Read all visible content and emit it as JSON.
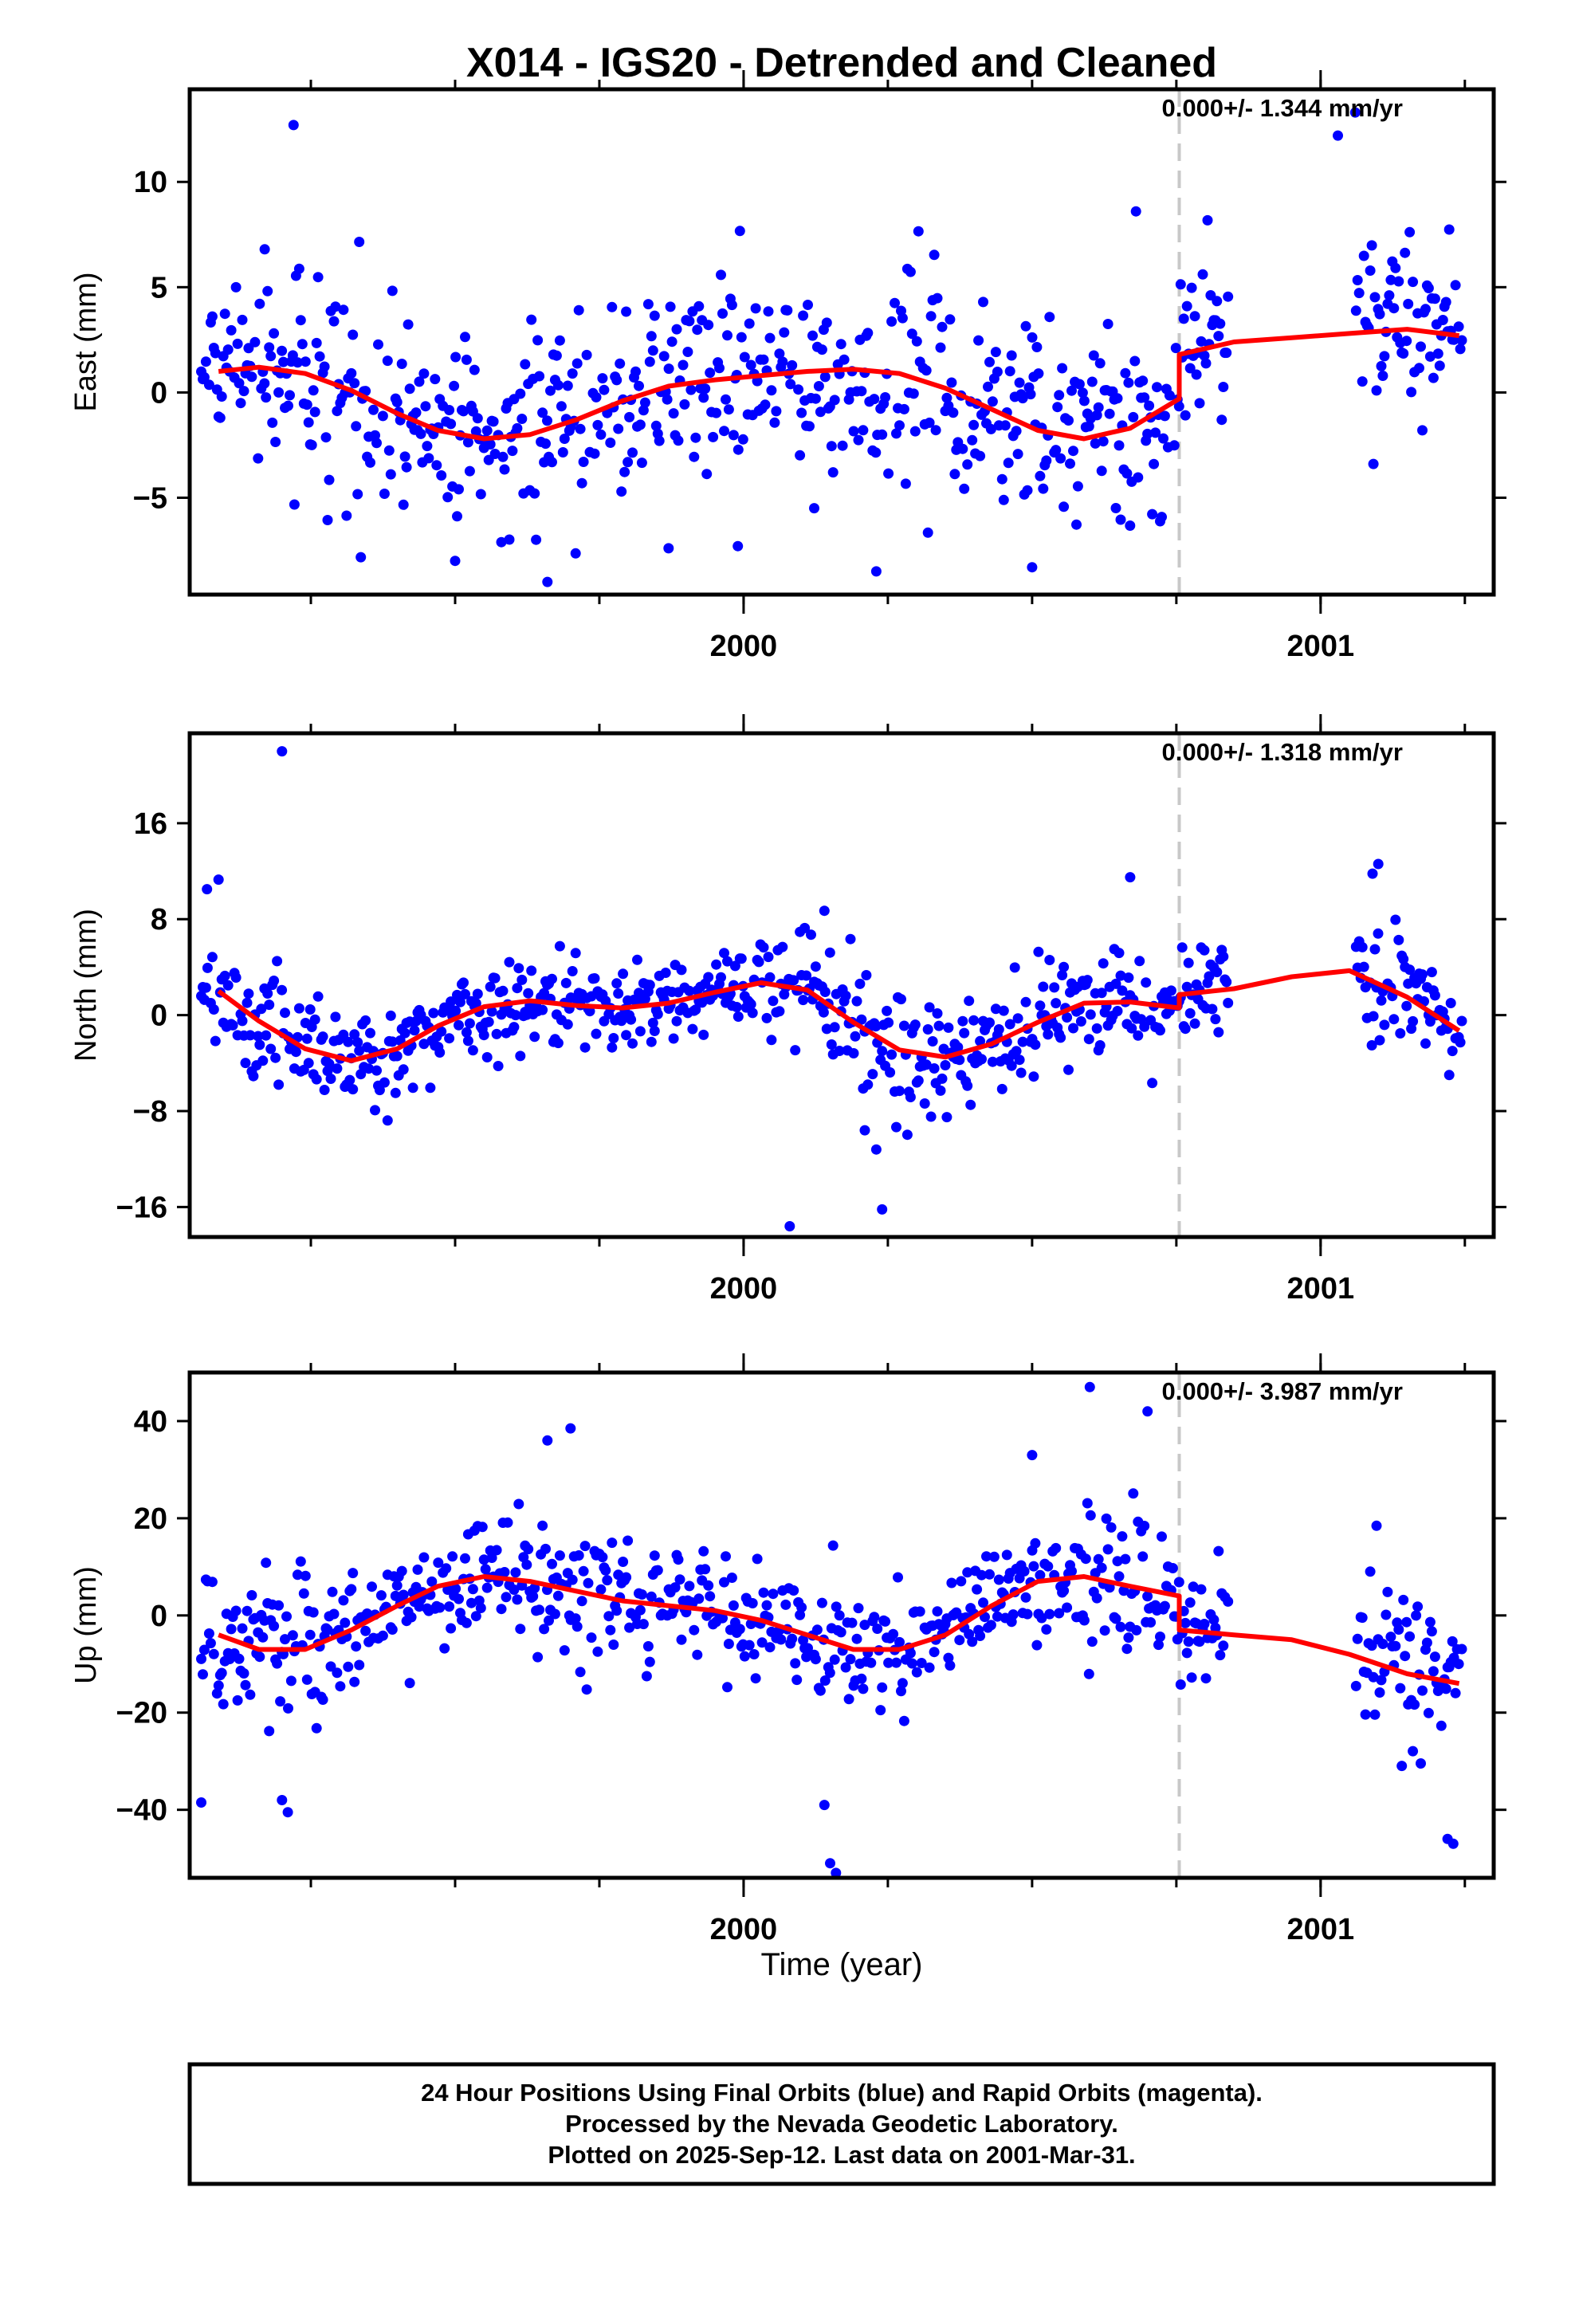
{
  "title": "X014 - IGS20 - Detrended and Cleaned",
  "xlabel": "Time (year)",
  "colors": {
    "final": "#0000ff",
    "rapid": "#ff00ff",
    "model": "#ff0000",
    "break": "#c8c8c8"
  },
  "footer": {
    "line1": "24 Hour Positions Using Final Orbits (blue) and Rapid Orbits (magenta).",
    "line2": "Processed by the Nevada Geodetic Laboratory.",
    "line3": "Plotted on 2025-Sep-12. Last data on 2001-Mar-31."
  },
  "chart_data": [
    {
      "type": "scatter",
      "name": "east",
      "ylabel": "East (mm)",
      "rate_label": "0.000+/- 1.344 mm/yr",
      "xlim": [
        1999.04,
        2001.3
      ],
      "ylim": [
        -9.6,
        14.4
      ],
      "xticks": [
        2000,
        2001
      ],
      "xtick_labels": [
        "2000",
        "2001"
      ],
      "yticks": [
        -5,
        0,
        5,
        10
      ],
      "ytick_labels": [
        "−5",
        "0",
        "5",
        "10"
      ],
      "break_epoch": 2000.755,
      "gaps": [
        [
          2000.84,
          2001.06
        ]
      ],
      "model": {
        "x": [
          1999.09,
          1999.16,
          1999.24,
          1999.32,
          1999.4,
          1999.47,
          1999.55,
          1999.63,
          1999.71,
          1999.79,
          1999.87,
          1999.95,
          2000.03,
          2000.11,
          2000.19,
          2000.27,
          2000.35,
          2000.43,
          2000.51,
          2000.59,
          2000.67,
          2000.755,
          2000.755,
          2000.85,
          2000.95,
          2001.05,
          2001.15,
          2001.24
        ],
        "y": [
          1.0,
          1.2,
          0.9,
          0.1,
          -1.0,
          -1.8,
          -2.2,
          -2.0,
          -1.3,
          -0.4,
          0.3,
          0.6,
          0.8,
          1.0,
          1.1,
          0.9,
          0.2,
          -0.8,
          -1.8,
          -2.2,
          -1.7,
          -0.3,
          1.8,
          2.4,
          2.6,
          2.8,
          3.0,
          2.7
        ]
      },
      "residual_profile": {
        "x": [
          1999.06,
          1999.2,
          1999.32,
          1999.4,
          1999.5,
          1999.6,
          1999.7,
          1999.78,
          1999.9,
          2000.05,
          2000.17,
          2000.25,
          2000.35,
          2000.42,
          2000.5,
          2000.59,
          2000.68,
          2000.76,
          2000.84,
          2001.06,
          2001.18,
          2001.25,
          2001.3
        ],
        "scatter": [
          1.9,
          2.2,
          2.2,
          2.2,
          2.1,
          2.4,
          2.5,
          2.3,
          2.4,
          2.3,
          2.4,
          2.5,
          2.6,
          2.4,
          2.5,
          2.5,
          2.4,
          2.3,
          2.2,
          3.2,
          2.6,
          2.2,
          2.2
        ]
      },
      "outliers": [
        [
          1999.22,
          12.7
        ],
        [
          1999.66,
          -9.0
        ],
        [
          2001.06,
          13.3
        ],
        [
          2001.03,
          12.2
        ],
        [
          2000.68,
          8.6
        ],
        [
          2000.23,
          -8.5
        ],
        [
          2000.5,
          -8.3
        ],
        [
          1999.5,
          -8.0
        ],
        [
          1999.87,
          -7.4
        ],
        [
          1999.99,
          -7.3
        ],
        [
          1999.17,
          6.8
        ]
      ]
    },
    {
      "type": "scatter",
      "name": "north",
      "ylabel": "North (mm)",
      "rate_label": "0.000+/- 1.318 mm/yr",
      "xlim": [
        1999.04,
        2001.3
      ],
      "ylim": [
        -18.5,
        23.5
      ],
      "xticks": [
        2000,
        2001
      ],
      "xtick_labels": [
        "2000",
        "2001"
      ],
      "yticks": [
        -16,
        -8,
        0,
        8,
        16
      ],
      "ytick_labels": [
        "−16",
        "−8",
        "0",
        "8",
        "16"
      ],
      "break_epoch": 2000.755,
      "gaps": [
        [
          2000.84,
          2001.06
        ]
      ],
      "model": {
        "x": [
          1999.09,
          1999.16,
          1999.24,
          1999.32,
          1999.4,
          1999.47,
          1999.55,
          1999.63,
          1999.71,
          1999.79,
          1999.87,
          1999.95,
          2000.03,
          2000.11,
          2000.19,
          2000.27,
          2000.35,
          2000.43,
          2000.51,
          2000.59,
          2000.67,
          2000.755,
          2000.755,
          2000.85,
          2000.95,
          2001.05,
          2001.15,
          2001.24
        ],
        "y": [
          2.0,
          -0.5,
          -2.8,
          -3.8,
          -2.8,
          -0.9,
          0.7,
          1.2,
          0.8,
          0.6,
          1.0,
          1.9,
          2.7,
          2.1,
          -0.6,
          -2.9,
          -3.5,
          -2.4,
          -0.6,
          1.0,
          1.1,
          0.6,
          1.7,
          2.2,
          3.2,
          3.7,
          1.5,
          -1.3
        ]
      },
      "residual_profile": {
        "x": [
          1999.06,
          1999.2,
          1999.32,
          1999.45,
          1999.6,
          1999.75,
          1999.9,
          2000.05,
          2000.15,
          2000.25,
          2000.35,
          2000.45,
          2000.55,
          2000.65,
          2000.76,
          2000.84,
          2001.06,
          2001.18,
          2001.3
        ],
        "scatter": [
          2.6,
          2.4,
          2.1,
          2.1,
          2.0,
          1.9,
          2.0,
          2.1,
          2.7,
          2.8,
          2.2,
          2.2,
          2.0,
          2.2,
          1.9,
          1.9,
          2.8,
          2.2,
          2.1
        ]
      },
      "outliers": [
        [
          1999.2,
          22.0
        ],
        [
          2000.08,
          -17.6
        ],
        [
          2000.24,
          -16.2
        ],
        [
          2000.67,
          11.5
        ],
        [
          2001.1,
          12.6
        ],
        [
          2001.09,
          11.8
        ],
        [
          1999.07,
          10.5
        ],
        [
          1999.09,
          11.3
        ],
        [
          2000.23,
          -11.2
        ],
        [
          2000.14,
          8.7
        ],
        [
          2000.21,
          -9.6
        ]
      ]
    },
    {
      "type": "scatter",
      "name": "up",
      "ylabel": "Up (mm)",
      "rate_label": "0.000+/- 3.987 mm/yr",
      "xlim": [
        1999.04,
        2001.3
      ],
      "ylim": [
        -54,
        50
      ],
      "xticks": [
        2000,
        2001
      ],
      "xtick_labels": [
        "2000",
        "2001"
      ],
      "yticks": [
        -40,
        -20,
        0,
        20,
        40
      ],
      "ytick_labels": [
        "−40",
        "−20",
        "0",
        "20",
        "40"
      ],
      "break_epoch": 2000.755,
      "gaps": [
        [
          2000.84,
          2001.06
        ]
      ],
      "model": {
        "x": [
          1999.09,
          1999.16,
          1999.24,
          1999.32,
          1999.4,
          1999.47,
          1999.55,
          1999.63,
          1999.71,
          1999.79,
          1999.87,
          1999.95,
          2000.03,
          2000.11,
          2000.19,
          2000.27,
          2000.35,
          2000.43,
          2000.51,
          2000.59,
          2000.67,
          2000.755,
          2000.755,
          2000.85,
          2000.95,
          2001.05,
          2001.15,
          2001.24
        ],
        "y": [
          -4,
          -7,
          -7,
          -3,
          2,
          6,
          8,
          7,
          5,
          3,
          2,
          1,
          -1,
          -4,
          -7,
          -7,
          -4,
          2,
          7,
          8,
          6,
          4,
          -3,
          -4,
          -5,
          -8,
          -12,
          -14
        ]
      },
      "residual_profile": {
        "x": [
          1999.06,
          1999.15,
          1999.25,
          1999.35,
          1999.5,
          1999.65,
          1999.8,
          1999.95,
          2000.05,
          2000.12,
          2000.2,
          2000.3,
          2000.42,
          2000.55,
          2000.65,
          2000.76,
          2000.84,
          2001.06,
          2001.18,
          2001.3
        ],
        "scatter": [
          8,
          9,
          8,
          6,
          6,
          7,
          6,
          6,
          5,
          8,
          8,
          6,
          6,
          7,
          7,
          6,
          5,
          9,
          8,
          8
        ]
      },
      "outliers": [
        [
          2000.6,
          47.0
        ],
        [
          2000.7,
          42.0
        ],
        [
          1999.66,
          36.0
        ],
        [
          1999.7,
          38.5
        ],
        [
          2000.15,
          -51.0
        ],
        [
          2000.16,
          -53.0
        ],
        [
          1999.21,
          -40.5
        ],
        [
          1999.2,
          -38.0
        ],
        [
          1999.06,
          -38.5
        ],
        [
          2000.14,
          -39.0
        ],
        [
          2001.22,
          -46.0
        ],
        [
          2001.23,
          -47.0
        ],
        [
          2000.5,
          33.0
        ]
      ]
    }
  ]
}
